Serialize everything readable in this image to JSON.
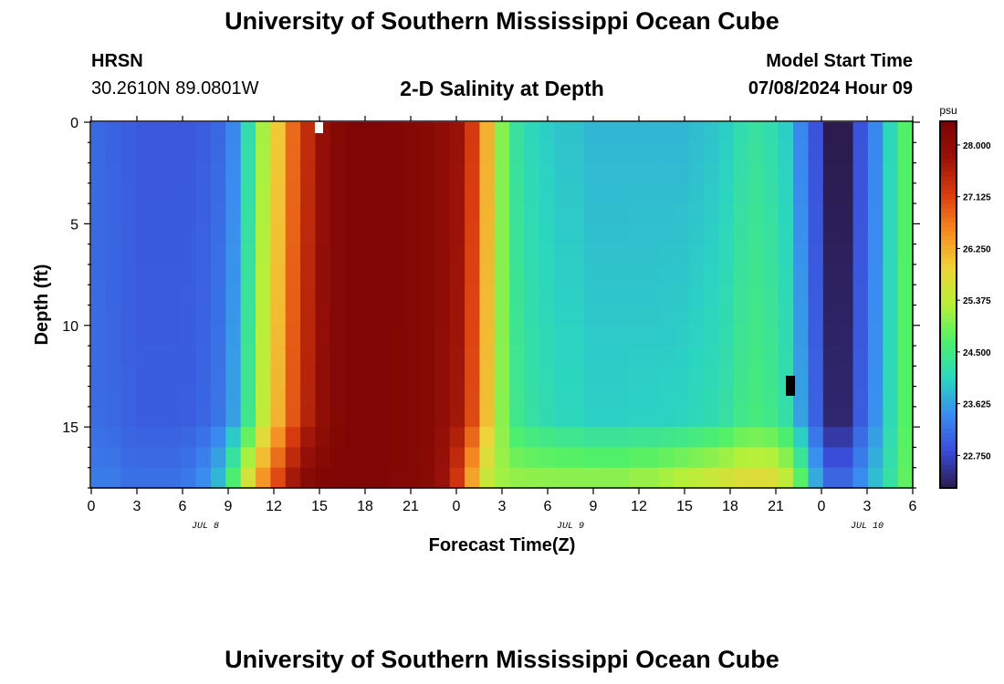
{
  "header": {
    "title": "University of Southern Mississippi Ocean Cube",
    "station": "HRSN",
    "coords": "30.2610N  89.0801W",
    "subtitle": "2-D Salinity at Depth",
    "model_start_label": "Model Start Time",
    "model_start_value": "07/08/2024 Hour 09"
  },
  "footer": {
    "title": "University of Southern Mississippi Ocean Cube"
  },
  "chart_data": {
    "type": "heatmap",
    "title": "2-D Salinity at Depth",
    "xlabel": "Forecast Time(Z)",
    "ylabel": "Depth (ft)",
    "x_ticks": [
      "0",
      "3",
      "6",
      "9",
      "12",
      "15",
      "18",
      "21",
      "0",
      "3",
      "6",
      "9",
      "12",
      "15",
      "18",
      "21",
      "0",
      "3",
      "6"
    ],
    "date_labels": [
      {
        "label": "JUL 8",
        "x": 7.5
      },
      {
        "label": "JUL 9",
        "x": 31.5
      },
      {
        "label": "JUL 10",
        "x": 51
      }
    ],
    "xlim": [
      0,
      54
    ],
    "y_ticks": [
      0,
      5,
      10,
      15
    ],
    "ylim": [
      0,
      18
    ],
    "colorbar": {
      "unit": "psu",
      "ticks": [
        "22.750",
        "23.625",
        "24.500",
        "25.375",
        "26.250",
        "27.125",
        "28.000"
      ],
      "range": [
        22.2,
        28.4
      ]
    },
    "colors": [
      "#2b1b4e",
      "#3a4bd8",
      "#3a8cf0",
      "#2bd6c0",
      "#4ef06a",
      "#b6f03a",
      "#f0d23a",
      "#f58a22",
      "#d93d0f",
      "#9a1208",
      "#7a0403"
    ],
    "surface_salinity_by_hour": [
      23.1,
      23.05,
      23.0,
      22.95,
      22.95,
      22.95,
      22.95,
      23.0,
      23.1,
      23.4,
      24.2,
      25.2,
      26.0,
      26.8,
      27.4,
      27.9,
      28.2,
      28.3,
      28.3,
      28.3,
      28.25,
      28.2,
      28.15,
      28.0,
      27.8,
      27.2,
      26.2,
      25.0,
      24.3,
      24.1,
      24.0,
      23.9,
      23.9,
      23.8,
      23.8,
      23.8,
      23.8,
      23.8,
      23.8,
      23.8,
      23.85,
      23.9,
      24.0,
      24.2,
      24.3,
      24.2,
      24.0,
      23.4,
      22.9,
      22.2,
      22.2,
      22.9,
      23.4,
      24.1,
      24.7
    ],
    "near_bottom_salinity_by_hour": [
      23.3,
      23.3,
      23.2,
      23.2,
      23.2,
      23.2,
      23.3,
      23.5,
      23.9,
      24.8,
      25.8,
      26.6,
      27.2,
      27.8,
      28.2,
      28.3,
      28.3,
      28.3,
      28.3,
      28.3,
      28.2,
      28.2,
      28.1,
      27.8,
      27.2,
      26.2,
      25.4,
      25.2,
      25.2,
      25.2,
      25.2,
      25.2,
      25.2,
      25.2,
      25.2,
      25.2,
      25.3,
      25.3,
      25.4,
      25.5,
      25.6,
      25.7,
      25.8,
      25.9,
      25.9,
      25.9,
      25.6,
      24.9,
      23.8,
      23.2,
      23.2,
      23.5,
      23.9,
      24.3,
      24.8
    ]
  }
}
